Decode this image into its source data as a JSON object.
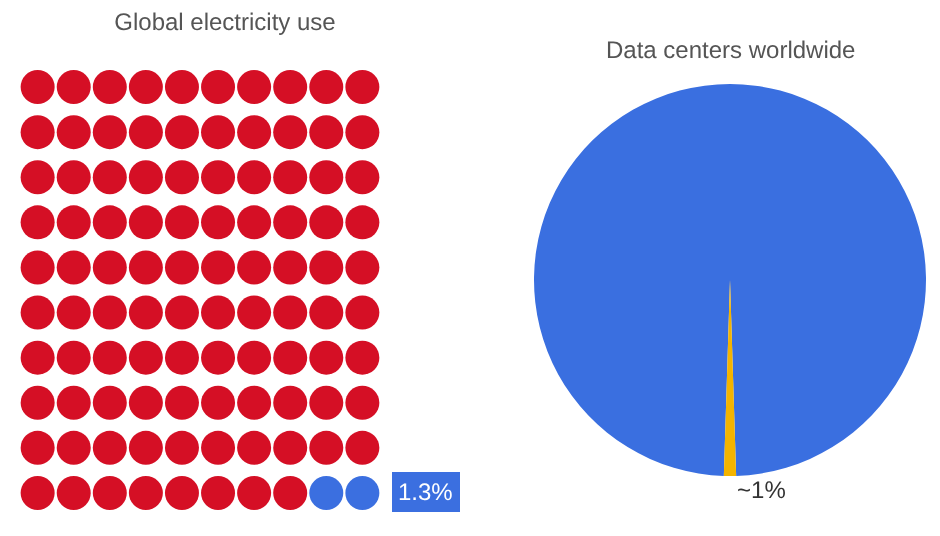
{
  "chart_data": [
    {
      "type": "other",
      "title": "Global electricity use",
      "color": "#d50f25",
      "categories": [
        null
      ],
      "values": [
        1.3
      ],
      "colors": [
        "#3b6fe0"
      ],
      "value_labels": [
        "1.3%"
      ]
    },
    {
      "type": "pie",
      "categories": [
        "Data centers worldwide",
        null
      ],
      "values": [
        99,
        1
      ],
      "colors": [
        "#3a6fe0",
        "#f4b400"
      ],
      "value_labels": [
        null,
        "~1%"
      ]
    }
  ]
}
